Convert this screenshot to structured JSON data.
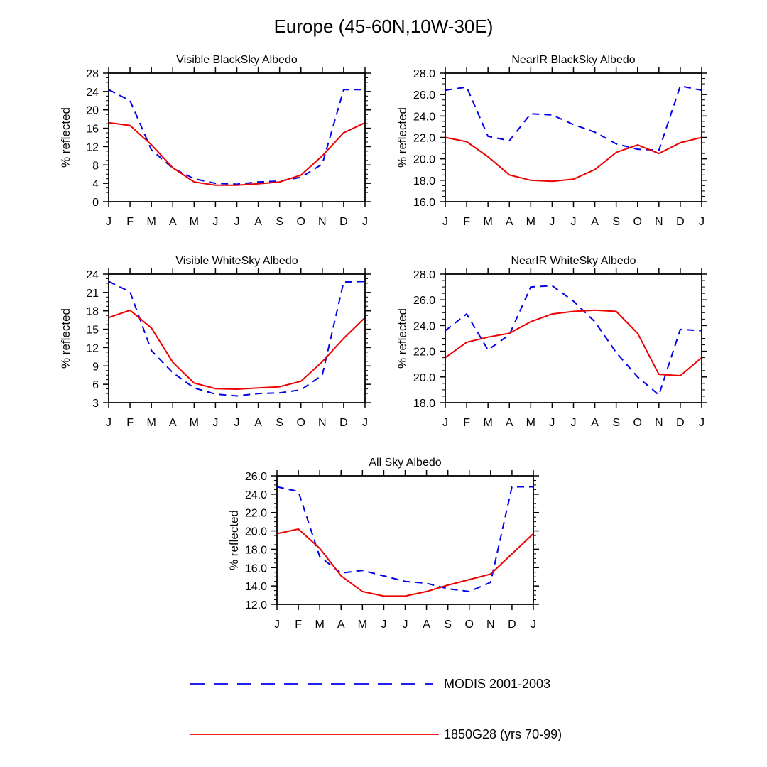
{
  "figure": {
    "title": "Europe (45-60N,10W-30E)"
  },
  "colors": {
    "series_1": "#0000ee",
    "series_2": "#ee0000"
  },
  "legend": [
    {
      "label": "MODIS 2001-2003",
      "style": "dashed",
      "color": "#0000ee"
    },
    {
      "label": "1850G28 (yrs 70-99)",
      "style": "solid",
      "color": "#ee0000"
    }
  ],
  "chart_data": [
    {
      "type": "line",
      "title": "Visible BlackSky Albedo",
      "ylabel": "% reflected",
      "xlabel": "",
      "categories": [
        "J",
        "F",
        "M",
        "A",
        "M",
        "J",
        "J",
        "A",
        "S",
        "O",
        "N",
        "D",
        "J"
      ],
      "ylim": [
        0,
        28
      ],
      "yticks": [
        "0",
        "4",
        "8",
        "12",
        "16",
        "20",
        "24",
        "28"
      ],
      "series": [
        {
          "name": "MODIS 2001-2003",
          "values": [
            24.4,
            22.0,
            11.3,
            7.3,
            5.0,
            4.0,
            3.8,
            4.3,
            4.5,
            5.3,
            8.2,
            24.4,
            24.4
          ]
        },
        {
          "name": "1850G28 (yrs 70-99)",
          "values": [
            17.2,
            16.6,
            12.4,
            7.4,
            4.3,
            3.6,
            3.6,
            3.9,
            4.3,
            5.8,
            10.0,
            15.0,
            17.2
          ]
        }
      ]
    },
    {
      "type": "line",
      "title": "NearIR BlackSky Albedo",
      "ylabel": "% reflected",
      "xlabel": "",
      "categories": [
        "J",
        "F",
        "M",
        "A",
        "M",
        "J",
        "J",
        "A",
        "S",
        "O",
        "N",
        "D",
        "J"
      ],
      "ylim": [
        16,
        28
      ],
      "yticks": [
        "16.0",
        "18.0",
        "20.0",
        "22.0",
        "24.0",
        "26.0",
        "28.0"
      ],
      "series": [
        {
          "name": "MODIS 2001-2003",
          "values": [
            26.4,
            26.7,
            22.1,
            21.7,
            24.2,
            24.1,
            23.2,
            22.5,
            21.4,
            20.9,
            20.8,
            26.8,
            26.4
          ]
        },
        {
          "name": "1850G28 (yrs 70-99)",
          "values": [
            22.0,
            21.6,
            20.2,
            18.5,
            18.0,
            17.9,
            18.1,
            19.0,
            20.6,
            21.3,
            20.5,
            21.5,
            22.0
          ]
        }
      ]
    },
    {
      "type": "line",
      "title": "Visible WhiteSky Albedo",
      "ylabel": "% reflected",
      "xlabel": "",
      "categories": [
        "J",
        "F",
        "M",
        "A",
        "M",
        "J",
        "J",
        "A",
        "S",
        "O",
        "N",
        "D",
        "J"
      ],
      "ylim": [
        3,
        24
      ],
      "yticks": [
        "3",
        "6",
        "9",
        "12",
        "15",
        "18",
        "21",
        "24"
      ],
      "series": [
        {
          "name": "MODIS 2001-2003",
          "values": [
            22.8,
            21.1,
            11.5,
            7.9,
            5.4,
            4.4,
            4.1,
            4.5,
            4.6,
            5.1,
            7.5,
            22.7,
            22.8
          ]
        },
        {
          "name": "1850G28 (yrs 70-99)",
          "values": [
            16.9,
            18.1,
            15.2,
            9.6,
            6.2,
            5.3,
            5.2,
            5.4,
            5.6,
            6.5,
            9.7,
            13.5,
            16.9
          ]
        }
      ]
    },
    {
      "type": "line",
      "title": "NearIR WhiteSky Albedo",
      "ylabel": "% reflected",
      "xlabel": "",
      "categories": [
        "J",
        "F",
        "M",
        "A",
        "M",
        "J",
        "J",
        "A",
        "S",
        "O",
        "N",
        "D",
        "J"
      ],
      "ylim": [
        18,
        28
      ],
      "yticks": [
        "18.0",
        "20.0",
        "22.0",
        "24.0",
        "26.0",
        "28.0"
      ],
      "series": [
        {
          "name": "MODIS 2001-2003",
          "values": [
            23.6,
            24.9,
            22.1,
            23.3,
            27.0,
            27.1,
            25.9,
            24.3,
            21.9,
            20.0,
            18.6,
            23.7,
            23.6
          ]
        },
        {
          "name": "1850G28 (yrs 70-99)",
          "values": [
            21.5,
            22.7,
            23.1,
            23.4,
            24.3,
            24.9,
            25.1,
            25.2,
            25.1,
            23.4,
            20.2,
            20.1,
            21.5
          ]
        }
      ]
    },
    {
      "type": "line",
      "title": "All Sky Albedo",
      "ylabel": "% reflected",
      "xlabel": "",
      "categories": [
        "J",
        "F",
        "M",
        "A",
        "M",
        "J",
        "J",
        "A",
        "S",
        "O",
        "N",
        "D",
        "J"
      ],
      "ylim": [
        12,
        26
      ],
      "yticks": [
        "12.0",
        "14.0",
        "16.0",
        "18.0",
        "20.0",
        "22.0",
        "24.0",
        "26.0"
      ],
      "series": [
        {
          "name": "MODIS 2001-2003",
          "values": [
            24.8,
            24.3,
            17.2,
            15.4,
            15.7,
            15.1,
            14.5,
            14.3,
            13.7,
            13.4,
            14.4,
            24.8,
            24.8
          ]
        },
        {
          "name": "1850G28 (yrs 70-99)",
          "values": [
            19.7,
            20.2,
            18.1,
            15.1,
            13.4,
            12.9,
            12.9,
            13.4,
            14.1,
            14.7,
            15.3,
            17.5,
            19.7
          ]
        }
      ]
    }
  ]
}
